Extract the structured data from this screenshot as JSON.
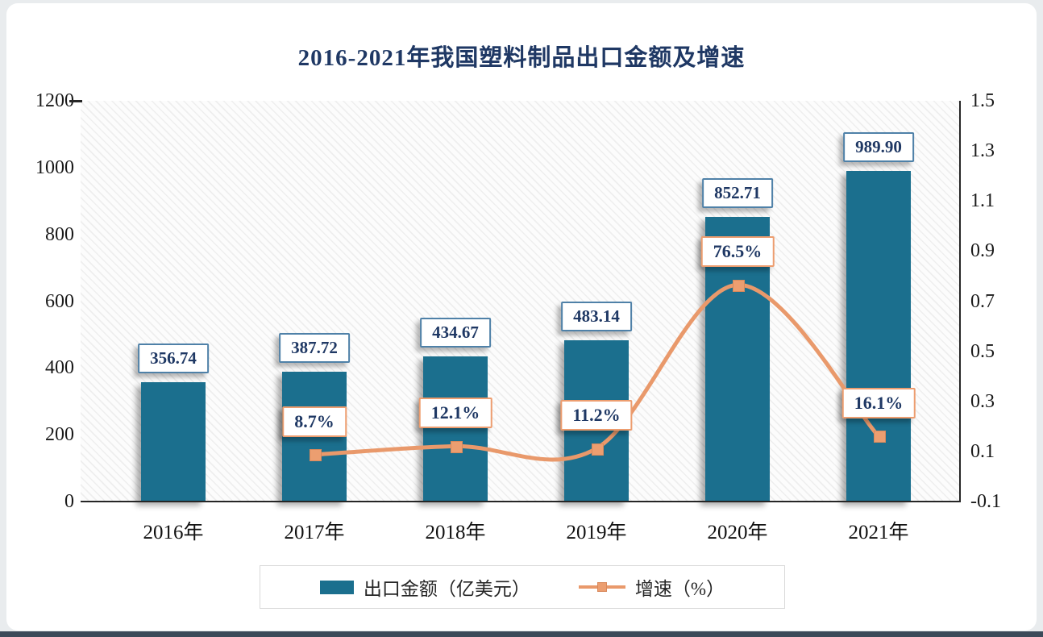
{
  "chart_data": {
    "type": "bar",
    "subtype": "combo-bar-line",
    "title": "2016-2021年我国塑料制品出口金额及增速",
    "categories": [
      "2016年",
      "2017年",
      "2018年",
      "2019年",
      "2020年",
      "2021年"
    ],
    "series": [
      {
        "name": "出口金额（亿美元）",
        "type": "bar",
        "axis": "left",
        "values": [
          356.74,
          387.72,
          434.67,
          483.14,
          852.71,
          989.9
        ],
        "labels": [
          "356.74",
          "387.72",
          "434.67",
          "483.14",
          "852.71",
          "989.90"
        ]
      },
      {
        "name": "增速（%）",
        "type": "line",
        "axis": "right",
        "values": [
          null,
          0.087,
          0.121,
          0.112,
          0.765,
          0.161
        ],
        "labels": [
          null,
          "8.7%",
          "12.1%",
          "11.2%",
          "76.5%",
          "16.1%"
        ]
      }
    ],
    "left_axis": {
      "min": 0,
      "max": 1200,
      "tick_labels": [
        "1200",
        "1000",
        "800",
        "600",
        "400",
        "200",
        "0"
      ]
    },
    "right_axis": {
      "min": -0.1,
      "max": 1.5,
      "tick_labels": [
        "1.5",
        "1.3",
        "1.1",
        "0.9",
        "0.7",
        "0.5",
        "0.3",
        "0.1",
        "-0.1"
      ]
    },
    "legend": [
      "出口金额（亿美元）",
      "增速（%）"
    ],
    "grid": "hatched-plot-background",
    "legend_position": "bottom"
  },
  "colors": {
    "bar": "#1b6f8e",
    "line": "#e9996b",
    "marker": "#ec9e70",
    "title": "#1f3864",
    "value_box_border": "#4f81a8",
    "percent_box_border": "#ed9d6f",
    "label_text": "#1f3864",
    "axis_text": "#1a1a1a",
    "axis_line": "#262626",
    "bottom_strip": "#3c4a59"
  }
}
